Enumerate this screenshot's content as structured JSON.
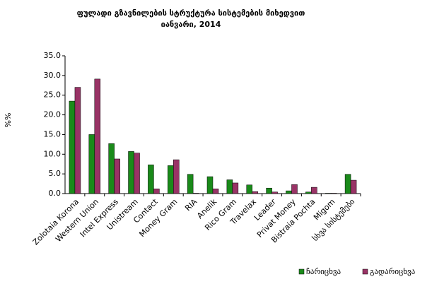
{
  "chart_data": {
    "type": "bar",
    "title": "ფულადი გზავნილების სტრუქტურა სისტემების მიხედვით",
    "subtitle": "იანვარი, 2014",
    "y_label": "%%",
    "categories": [
      "Zolotaia Korona",
      "Western Union",
      "Intel Express",
      "Unistream",
      "Contact",
      "Money Gram",
      "RIA",
      "Anelik",
      "Rico Gram",
      "Travelax",
      "Leader",
      "Privat Money",
      "Bistraia Pochta",
      "Migom",
      "სხვა სისტემები"
    ],
    "series": [
      {
        "name": "ჩარიცხვა",
        "color": "#1a8a1a",
        "values": [
          23.5,
          15.0,
          12.7,
          10.7,
          7.3,
          7.1,
          4.9,
          4.3,
          3.5,
          2.2,
          1.4,
          0.7,
          0.4,
          0.1,
          4.9
        ]
      },
      {
        "name": "გადარიცხვა",
        "color": "#993366",
        "values": [
          27.0,
          29.1,
          8.8,
          10.3,
          1.2,
          8.6,
          0.1,
          1.2,
          2.7,
          0.5,
          0.4,
          2.3,
          1.6,
          0.1,
          3.4
        ]
      }
    ],
    "ylim": [
      0,
      35
    ],
    "yticks": [
      {
        "value": 0,
        "label": "0.0"
      },
      {
        "value": 5,
        "label": "5.0"
      },
      {
        "value": 10,
        "label": "10.0"
      },
      {
        "value": 15,
        "label": "15.0"
      },
      {
        "value": 20,
        "label": "20.0"
      },
      {
        "value": 25,
        "label": "25.0"
      },
      {
        "value": 30,
        "label": "30.0"
      },
      {
        "value": 35,
        "label": "35.0"
      }
    ],
    "grid": false,
    "legend": "bottom-right"
  }
}
